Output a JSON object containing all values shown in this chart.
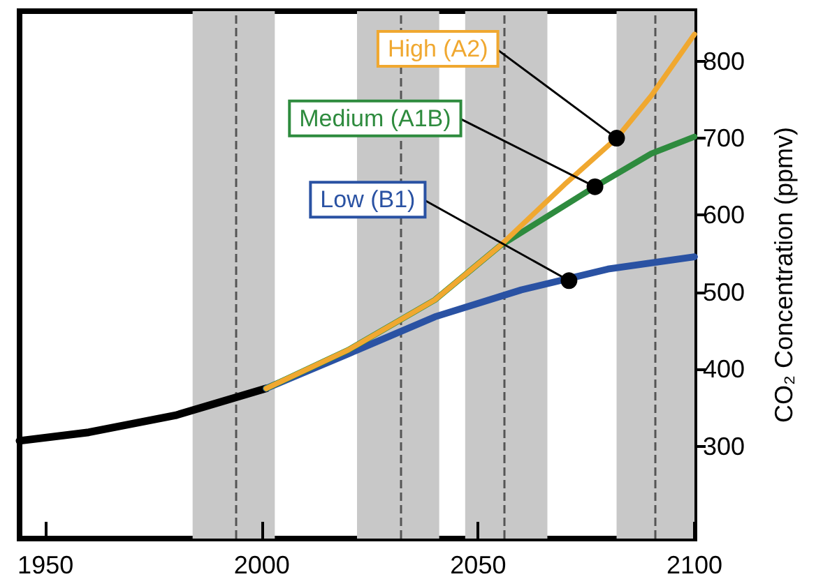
{
  "chart_data": {
    "type": "line",
    "ylabel": "CO₂ Concentration (ppmv)",
    "xlim": [
      1944,
      2100
    ],
    "xticks": [
      1950,
      2000,
      2050,
      2100
    ],
    "ylim": [
      180,
      865
    ],
    "yticks": [
      300,
      400,
      500,
      600,
      700,
      800
    ],
    "grid": false,
    "marker": "none",
    "line_style": "solid",
    "series": [
      {
        "color": "#000000",
        "x": [
          1944,
          1960,
          1980,
          2001
        ],
        "values": [
          307,
          318,
          340,
          375
        ]
      },
      {
        "color": "#2a52a3",
        "x": [
          2001,
          2020,
          2040,
          2060,
          2080,
          2100
        ],
        "values": [
          375,
          420,
          468,
          503,
          530,
          546
        ]
      },
      {
        "color": "#2e8b3e",
        "x": [
          2001,
          2020,
          2040,
          2055,
          2077,
          2090,
          2100
        ],
        "values": [
          375,
          425,
          490,
          560,
          637,
          680,
          702
        ]
      },
      {
        "color": "#f0a830",
        "x": [
          2001,
          2020,
          2040,
          2055,
          2070,
          2082,
          2090,
          2100
        ],
        "values": [
          375,
          425,
          490,
          560,
          640,
          700,
          755,
          835
        ]
      }
    ],
    "bands": [
      {
        "axis": "x",
        "from": 1984,
        "to": 2003,
        "color": "#c8c8c8"
      },
      {
        "axis": "x",
        "from": 2022,
        "to": 2041,
        "color": "#c8c8c8"
      },
      {
        "axis": "x",
        "from": 2047,
        "to": 2066,
        "color": "#c8c8c8"
      },
      {
        "axis": "x",
        "from": 2082,
        "to": 2100,
        "color": "#c8c8c8"
      }
    ],
    "ref_lines": [
      {
        "axis": "x",
        "value": 1994,
        "color": "#555555",
        "line_style": "dashed"
      },
      {
        "axis": "x",
        "value": 2032,
        "color": "#555555",
        "line_style": "dashed"
      },
      {
        "axis": "x",
        "value": 2056,
        "color": "#555555",
        "line_style": "dashed"
      },
      {
        "axis": "x",
        "value": 2091,
        "color": "#555555",
        "line_style": "dashed"
      }
    ],
    "annotations": [
      {
        "text": "High (A2)",
        "x": 2082,
        "y": 700
      },
      {
        "text": "Medium (A1B)",
        "x": 2077,
        "y": 637
      },
      {
        "text": "Low (B1)",
        "x": 2071,
        "y": 515
      }
    ]
  }
}
